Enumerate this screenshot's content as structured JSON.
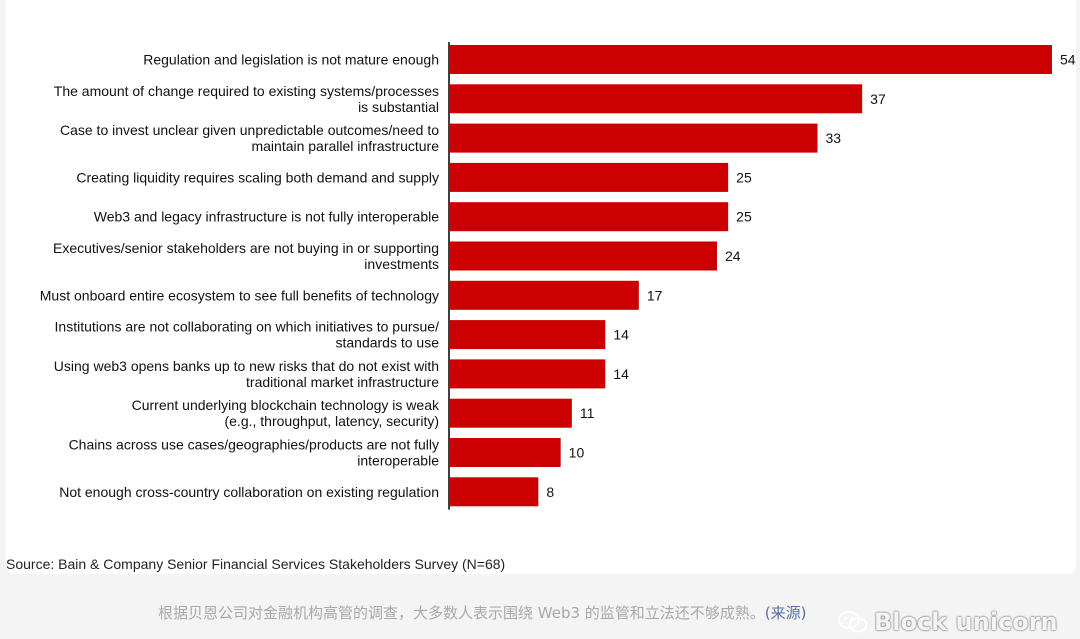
{
  "chart_data": {
    "type": "bar",
    "orientation": "horizontal",
    "categories": [
      "Regulation and legislation is not mature enough",
      "The amount of change required to existing systems/processes\nis substantial",
      "Case to invest unclear given unpredictable outcomes/need to\nmaintain parallel infrastructure",
      "Creating liquidity requires scaling both demand and supply",
      "Web3 and legacy infrastructure is not fully interoperable",
      "Executives/senior stakeholders are not buying in or supporting\ninvestments",
      "Must onboard entire ecosystem to see full benefits of technology",
      "Institutions are not collaborating on which initiatives to pursue/\nstandards to use",
      "Using web3 opens banks up to new risks that do not exist with\ntraditional market infrastructure",
      "Current underlying blockchain technology is weak\n(e.g., throughput, latency, security)",
      "Chains across use cases/geographies/products are not fully\ninteroperable",
      "Not enough cross-country collaboration on existing regulation"
    ],
    "values": [
      54,
      37,
      33,
      25,
      25,
      24,
      17,
      14,
      14,
      11,
      10,
      8
    ],
    "title": "",
    "xlabel": "",
    "ylabel": "",
    "xlim": [
      0,
      54
    ],
    "bar_color": "#cc0000",
    "grid": false,
    "data_labels": true
  },
  "source": "Source: Bain & Company Senior Financial Services Stakeholders Survey (N=68)",
  "caption": {
    "text": "根据贝恩公司对金融机构高管的调查，大多数人表示围绕 Web3 的监管和立法还不够成熟。",
    "link": "(来源)"
  },
  "watermark": {
    "icon": "wechat-icon",
    "text": "Block unicorn"
  }
}
